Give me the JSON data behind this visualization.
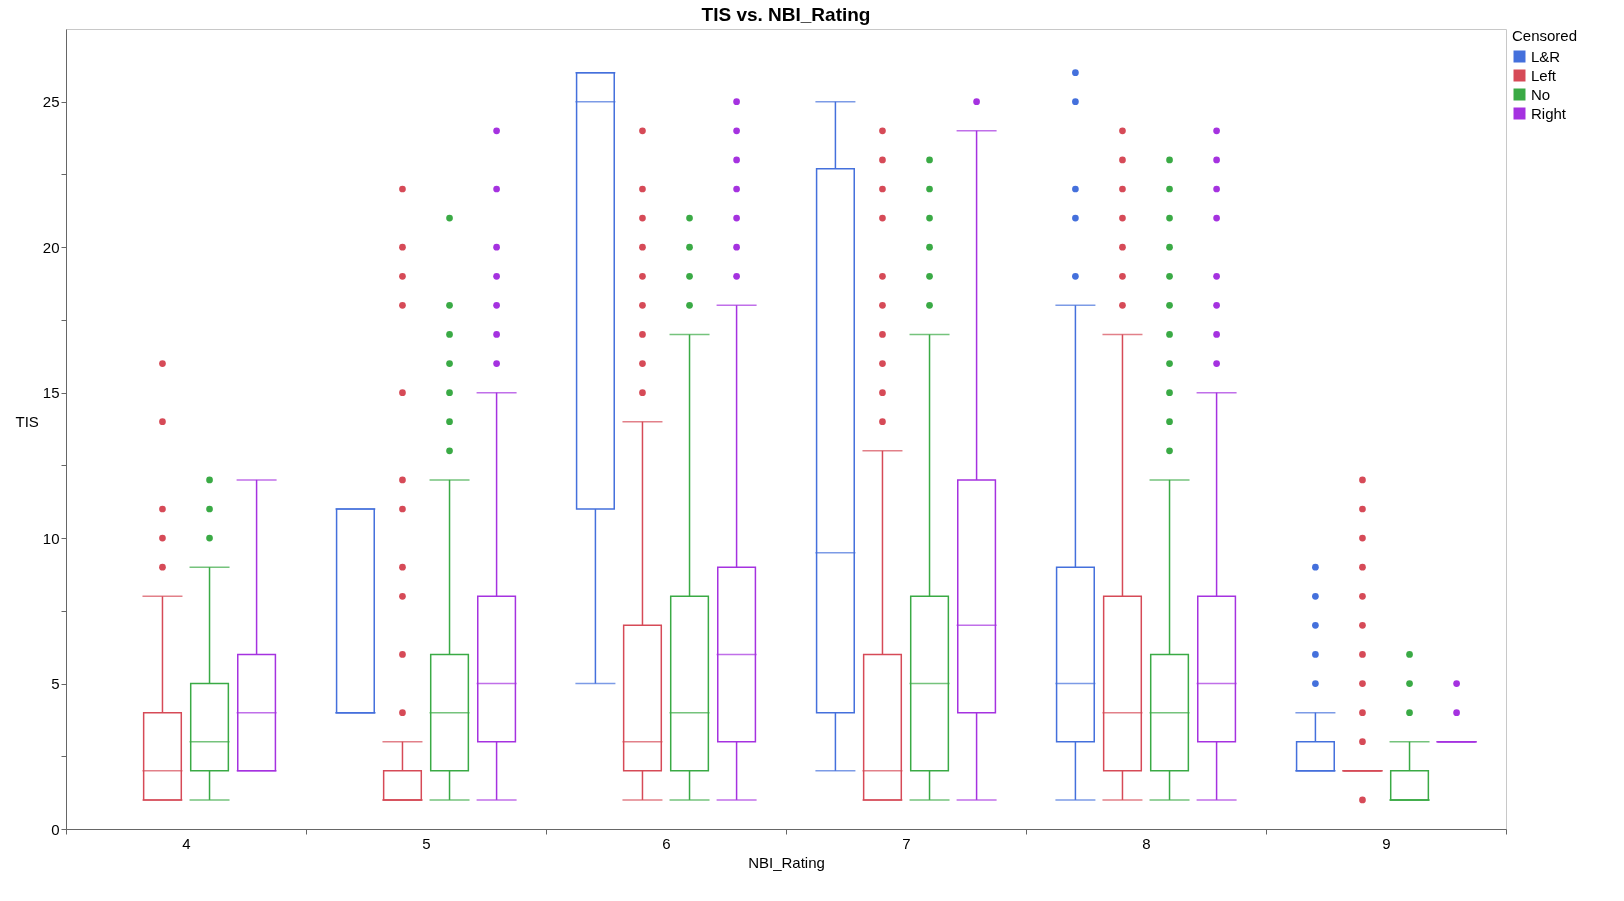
{
  "chart_data": {
    "type": "box",
    "title": "TIS vs. NBI_Rating",
    "xlabel": "NBI_Rating",
    "ylabel": "TIS",
    "legend_title": "Censored",
    "legend": "top right",
    "categories": [
      "4",
      "5",
      "6",
      "7",
      "8",
      "9"
    ],
    "ylim": [
      0,
      27.5
    ],
    "yticks": [
      0,
      {
        "value": 2.5,
        "label": null
      },
      5,
      {
        "value": 7.5,
        "label": null
      },
      10,
      {
        "value": 12.5,
        "label": null
      },
      15,
      {
        "value": 17.5,
        "label": null
      },
      20,
      {
        "value": 22.5,
        "label": null
      },
      25
    ],
    "series": [
      {
        "name": "L&R",
        "color": "#4470dc",
        "boxes": [
          null,
          {
            "low": 4,
            "q1": 4,
            "median": 4,
            "q3": 11,
            "high": 11
          },
          {
            "low": 5,
            "q1": 11,
            "median": 25,
            "q3": 26,
            "high": 26
          },
          {
            "low": 2,
            "q1": 4,
            "median": 9.5,
            "q3": 22.7,
            "high": 25
          },
          {
            "low": 1,
            "q1": 3,
            "median": 5,
            "q3": 9,
            "high": 18,
            "outliers": [
              19,
              21,
              22,
              25,
              26
            ]
          },
          {
            "low": 2,
            "q1": 2,
            "median": 2,
            "q3": 3,
            "high": 4,
            "outliers": [
              5,
              6,
              7,
              8,
              9
            ]
          }
        ]
      },
      {
        "name": "Left",
        "color": "#d64a57",
        "boxes": [
          {
            "low": 1,
            "q1": 1,
            "median": 2,
            "q3": 4,
            "high": 8,
            "outliers": [
              9,
              10,
              11,
              14,
              16
            ]
          },
          {
            "low": 1,
            "q1": 1,
            "median": 1,
            "q3": 2,
            "high": 3,
            "outliers": [
              4,
              6,
              8,
              9,
              11,
              12,
              15,
              18,
              19,
              20,
              22
            ]
          },
          {
            "low": 1,
            "q1": 2,
            "median": 3,
            "q3": 7,
            "high": 14,
            "outliers": [
              15,
              16,
              17,
              18,
              19,
              20,
              21,
              22,
              24
            ]
          },
          {
            "low": 1,
            "q1": 1,
            "median": 2,
            "q3": 6,
            "high": 13,
            "outliers": [
              14,
              15,
              16,
              17,
              18,
              19,
              21,
              22,
              23,
              24
            ]
          },
          {
            "low": 1,
            "q1": 2,
            "median": 4,
            "q3": 8,
            "high": 17,
            "outliers": [
              18,
              19,
              20,
              21,
              22,
              23,
              24
            ]
          },
          {
            "low": 2,
            "q1": 2,
            "median": 2,
            "q3": 2,
            "high": 2,
            "outliers": [
              1,
              3,
              4,
              5,
              6,
              7,
              8,
              9,
              10,
              11,
              12
            ]
          }
        ]
      },
      {
        "name": "No",
        "color": "#3aaa45",
        "boxes": [
          {
            "low": 1,
            "q1": 2,
            "median": 3,
            "q3": 5,
            "high": 9,
            "outliers": [
              10,
              11,
              12
            ]
          },
          {
            "low": 1,
            "q1": 2,
            "median": 4,
            "q3": 6,
            "high": 12,
            "outliers": [
              13,
              14,
              15,
              16,
              17,
              18,
              21
            ]
          },
          {
            "low": 1,
            "q1": 2,
            "median": 4,
            "q3": 8,
            "high": 17,
            "outliers": [
              18,
              19,
              20,
              21
            ]
          },
          {
            "low": 1,
            "q1": 2,
            "median": 5,
            "q3": 8,
            "high": 17,
            "outliers": [
              18,
              19,
              20,
              21,
              22,
              23
            ]
          },
          {
            "low": 1,
            "q1": 2,
            "median": 4,
            "q3": 6,
            "high": 12,
            "outliers": [
              13,
              14,
              15,
              16,
              17,
              18,
              19,
              20,
              21,
              22,
              23
            ]
          },
          {
            "low": 1,
            "q1": 1,
            "median": 1,
            "q3": 2,
            "high": 3,
            "outliers": [
              4,
              5,
              6
            ]
          }
        ]
      },
      {
        "name": "Right",
        "color": "#a532e0",
        "boxes": [
          {
            "low": 2,
            "q1": 2,
            "median": 4,
            "q3": 6,
            "high": 12
          },
          {
            "low": 1,
            "q1": 3,
            "median": 5,
            "q3": 8,
            "high": 15,
            "outliers": [
              16,
              17,
              18,
              19,
              20,
              22,
              24
            ]
          },
          {
            "low": 1,
            "q1": 3,
            "median": 6,
            "q3": 9,
            "high": 18,
            "outliers": [
              19,
              20,
              21,
              22,
              23,
              24,
              25
            ]
          },
          {
            "low": 1,
            "q1": 4,
            "median": 7,
            "q3": 12,
            "high": 24,
            "outliers": [
              25
            ]
          },
          {
            "low": 1,
            "q1": 3,
            "median": 5,
            "q3": 8,
            "high": 15,
            "outliers": [
              16,
              17,
              18,
              19,
              21,
              22,
              23,
              24
            ]
          },
          {
            "low": 3,
            "q1": 3,
            "median": 3,
            "q3": 3,
            "high": 3,
            "outliers": [
              4,
              5
            ]
          }
        ]
      }
    ]
  }
}
